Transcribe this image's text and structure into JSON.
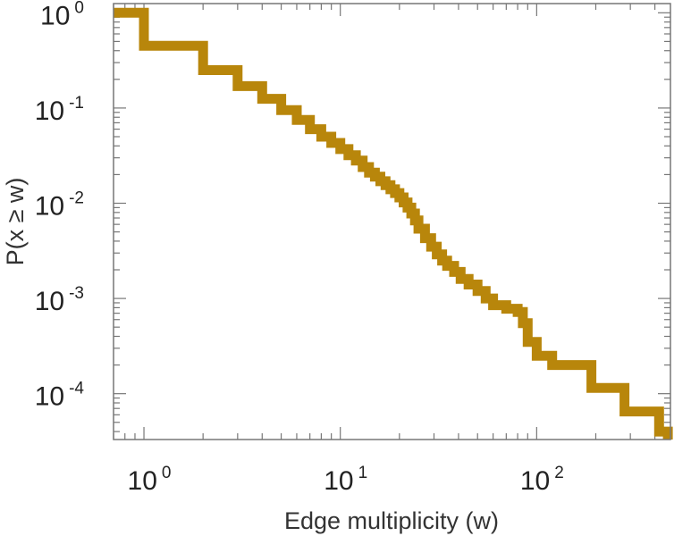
{
  "chart_data": {
    "type": "line",
    "line_style": "step",
    "xscale": "log",
    "yscale": "log",
    "xlabel": "Edge multiplicity (w)",
    "ylabel": "P(x ≥ w)",
    "xlim": [
      0.7,
      480
    ],
    "ylim": [
      3.3e-05,
      1.25
    ],
    "x_ticks": [
      {
        "value": 1,
        "base": "10",
        "exp": "0"
      },
      {
        "value": 10,
        "base": "10",
        "exp": "1"
      },
      {
        "value": 100,
        "base": "10",
        "exp": "2"
      }
    ],
    "y_ticks": [
      {
        "value": 1,
        "base": "10",
        "exp": "0"
      },
      {
        "value": 0.1,
        "base": "10",
        "exp": "-1"
      },
      {
        "value": 0.01,
        "base": "10",
        "exp": "-2"
      },
      {
        "value": 0.001,
        "base": "10",
        "exp": "-3"
      },
      {
        "value": 0.0001,
        "base": "10",
        "exp": "-4"
      }
    ],
    "grid": false,
    "series": [
      {
        "color": "#b8860b",
        "x": [
          0.7,
          1,
          2,
          3,
          4,
          5,
          6,
          7,
          8,
          9,
          10,
          11,
          12,
          13,
          14,
          15,
          16,
          17,
          18,
          19,
          20,
          21,
          22,
          23,
          24,
          25,
          27,
          29,
          31,
          33,
          35,
          38,
          41,
          45,
          50,
          55,
          60,
          70,
          80,
          85,
          90,
          100,
          120,
          190,
          280,
          420
        ],
        "y": [
          1.0,
          0.45,
          0.25,
          0.17,
          0.125,
          0.095,
          0.075,
          0.06,
          0.05,
          0.043,
          0.037,
          0.032,
          0.028,
          0.024,
          0.021,
          0.019,
          0.017,
          0.0155,
          0.014,
          0.0128,
          0.0115,
          0.0102,
          0.009,
          0.0078,
          0.0066,
          0.0054,
          0.0043,
          0.0035,
          0.0029,
          0.0025,
          0.0022,
          0.0019,
          0.0016,
          0.0014,
          0.0012,
          0.001,
          0.00085,
          0.00078,
          0.00072,
          0.00055,
          0.00035,
          0.00025,
          0.0002,
          0.000115,
          6.5e-05,
          4e-05
        ]
      }
    ]
  }
}
